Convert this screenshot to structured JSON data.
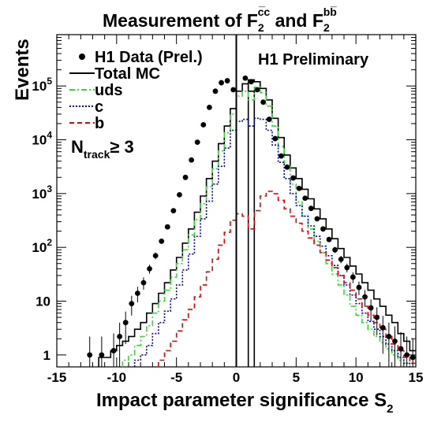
{
  "chart_data": {
    "type": "histogram",
    "title": "Measurement of F",
    "title_sub": "2",
    "title_sup_cc": "c̅c",
    "title_mid": " and F",
    "title_sup_bb": "bb̅",
    "xlabel": "Impact parameter significance S",
    "xlabel_sub": "2",
    "ylabel": "Events",
    "annotation": "H1 Preliminary",
    "cut_label_main": "N",
    "cut_label_sub": "track",
    "cut_label_rest": "≥ 3",
    "xlim": [
      -15,
      15
    ],
    "ylim": [
      0.6,
      900000
    ],
    "yscale": "log",
    "x_ticks": [
      "-15",
      "-10",
      "-5",
      "0",
      "5",
      "10",
      "15"
    ],
    "y_ticks": [
      {
        "base": "1",
        "exp": ""
      },
      {
        "base": "10",
        "exp": ""
      },
      {
        "base": "10",
        "exp": "2"
      },
      {
        "base": "10",
        "exp": "3"
      },
      {
        "base": "10",
        "exp": "4"
      },
      {
        "base": "10",
        "exp": "5"
      }
    ],
    "legend": [
      {
        "label": "H1 Data (Prel.)",
        "key": "data"
      },
      {
        "label": "Total MC",
        "key": "total"
      },
      {
        "label": "uds",
        "key": "uds"
      },
      {
        "label": "c",
        "key": "c"
      },
      {
        "label": "b",
        "key": "b"
      }
    ],
    "colors": {
      "data": "#000000",
      "total": "#000000",
      "uds": "#33dd33",
      "c": "#0000cc",
      "b": "#ee0000"
    },
    "bins": {
      "start": -15,
      "width": 0.5
    },
    "series": [
      {
        "key": "total",
        "values": [
          0,
          0,
          0,
          0,
          0,
          0,
          0,
          0.9,
          0.9,
          1.2,
          1.5,
          1.8,
          2.2,
          3,
          4,
          6,
          9,
          14,
          22,
          38,
          65,
          120,
          220,
          450,
          900,
          1900,
          4000,
          8500,
          18000,
          38000,
          80000,
          110000,
          80000,
          0,
          0,
          0,
          0,
          0,
          0,
          0,
          0,
          0,
          0,
          0,
          0,
          0,
          0,
          0,
          0,
          0,
          0,
          0,
          0,
          0,
          0,
          0,
          0,
          0,
          0,
          0
        ]
      },
      {
        "key": "total_pos",
        "values": [
          0,
          0,
          0,
          0,
          0,
          0,
          0,
          0,
          0,
          0,
          0,
          0,
          0,
          0,
          0,
          0,
          0,
          0,
          0,
          0,
          0,
          0,
          0,
          0,
          0,
          0,
          0,
          0,
          0,
          0,
          0,
          0,
          130000,
          120000,
          90000,
          55000,
          25000,
          11000,
          5200,
          3000,
          1900,
          1200,
          800,
          520,
          340,
          220,
          145,
          95,
          65,
          45,
          32,
          22,
          16,
          11,
          8,
          5.5,
          4,
          2.5,
          1.8,
          1.2
        ]
      },
      {
        "key": "uds",
        "values": [
          0,
          0,
          0,
          0,
          0,
          0,
          0,
          0,
          0,
          0,
          0,
          0.8,
          1,
          1.5,
          2.2,
          3.5,
          6,
          10,
          16,
          28,
          50,
          90,
          170,
          330,
          650,
          1350,
          2900,
          6200,
          13500,
          30000,
          65000,
          80000,
          55000,
          95000,
          75000,
          42000,
          18000,
          7500,
          3200,
          1500,
          700,
          380,
          220,
          130,
          80,
          50,
          32,
          20,
          13,
          8,
          5.5,
          4,
          3,
          2.2,
          1.7,
          1.3,
          1,
          0.8,
          0.7,
          0
        ]
      },
      {
        "key": "c",
        "values": [
          0,
          0,
          0,
          0,
          0,
          0,
          0,
          0,
          0,
          0,
          0,
          0,
          0,
          0.8,
          1,
          1.5,
          2.5,
          4,
          6.5,
          11,
          20,
          38,
          75,
          160,
          340,
          720,
          1500,
          3200,
          7000,
          15000,
          22000,
          24000,
          18000,
          25000,
          24000,
          15000,
          8000,
          3800,
          1900,
          1000,
          600,
          380,
          250,
          160,
          105,
          70,
          46,
          30,
          20,
          13,
          9,
          6,
          4.2,
          3,
          2.2,
          1.6,
          1.2,
          0.9,
          0.7,
          0
        ]
      },
      {
        "key": "b",
        "values": [
          0,
          0,
          0,
          0,
          0,
          0,
          0,
          0,
          0,
          0,
          0,
          0,
          0,
          0,
          0,
          0,
          0,
          0.8,
          1.2,
          1.8,
          2.8,
          4.5,
          7,
          12,
          20,
          35,
          60,
          110,
          190,
          320,
          420,
          380,
          220,
          480,
          900,
          1100,
          1000,
          750,
          520,
          380,
          280,
          200,
          150,
          110,
          80,
          58,
          42,
          30,
          22,
          16,
          11,
          8,
          5.5,
          4,
          3,
          2.2,
          1.6,
          1.2,
          0.9,
          0.7
        ]
      },
      {
        "key": "data",
        "x": [
          -12.25,
          -11.25,
          -10.25,
          -9.75,
          -9.25,
          -8.75,
          -8.25,
          -7.75,
          -7.25,
          -6.75,
          -6.25,
          -5.75,
          -5.25,
          -4.75,
          -4.25,
          -3.75,
          -3.25,
          -2.75,
          -2.25,
          -1.75,
          -1.25,
          -0.75,
          -0.25,
          0.75,
          1.25,
          1.75,
          2.25,
          2.75,
          3.25,
          3.75,
          4.25,
          4.75,
          5.25,
          5.75,
          6.25,
          6.75,
          7.25,
          7.75,
          8.25,
          8.75,
          9.25,
          9.75,
          10.25,
          10.75,
          11.25,
          11.75,
          12.25,
          12.75,
          13.25,
          13.75,
          14.25,
          14.75
        ],
        "y": [
          1,
          1,
          1.2,
          2.2,
          4,
          9,
          14,
          22,
          40,
          70,
          130,
          240,
          480,
          950,
          2000,
          4200,
          9000,
          19000,
          40000,
          80000,
          115000,
          125000,
          85000,
          140000,
          120000,
          85000,
          50000,
          24000,
          10500,
          5000,
          3100,
          1950,
          1250,
          820,
          530,
          340,
          220,
          140,
          90,
          60,
          42,
          28,
          18,
          12,
          7.5,
          5,
          3.2,
          2.2,
          1.8,
          1.3,
          1,
          0.9
        ]
      }
    ]
  }
}
